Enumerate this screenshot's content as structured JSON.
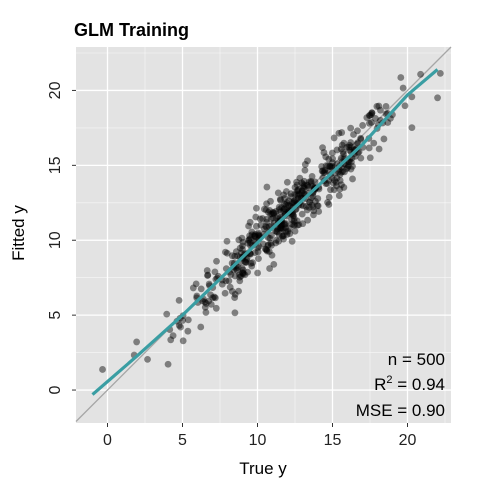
{
  "chart_data": {
    "type": "scatter",
    "title": "GLM Training",
    "xlabel": "True y",
    "ylabel": "Fitted y",
    "xlim": [
      -2.1,
      22.9
    ],
    "ylim": [
      -2.2,
      22.9
    ],
    "x_ticks": [
      0,
      5,
      10,
      15,
      20
    ],
    "y_ticks": [
      0,
      5,
      10,
      15,
      20
    ],
    "grid": true,
    "n_points": 500,
    "point_color": "#000000",
    "point_opacity": 0.45,
    "reference_line": {
      "name": "identity",
      "slope": 1,
      "intercept": 0,
      "color": "#a6a6a6"
    },
    "fit_line": {
      "name": "smooth",
      "color": "#3a9ea3",
      "x": [
        -1.0,
        2.0,
        5.0,
        8.0,
        11.0,
        14.0,
        17.0,
        20.0,
        22.0
      ],
      "y": [
        -0.3,
        2.3,
        5.0,
        7.9,
        10.8,
        13.6,
        16.4,
        19.7,
        21.4
      ]
    },
    "annotations": {
      "n": "n = 500",
      "r2_prefix": "R",
      "r2_sup": "2",
      "r2_value": " = 0.94",
      "mse": "MSE = 0.90"
    },
    "background_color": "#e3e3e3",
    "grid_color": "#ffffff"
  }
}
